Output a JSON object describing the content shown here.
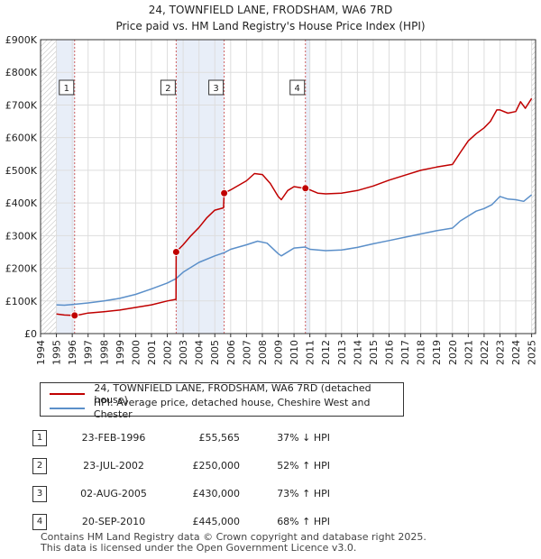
{
  "chart_data": {
    "type": "line",
    "title": "24, TOWNFIELD LANE, FRODSHAM, WA6 7RD",
    "subtitle": "Price paid vs. HM Land Registry's House Price Index (HPI)",
    "xlim": [
      1994,
      2025.25
    ],
    "ylim": [
      0,
      900000
    ],
    "y_ticks": [
      0,
      100000,
      200000,
      300000,
      400000,
      500000,
      600000,
      700000,
      800000,
      900000
    ],
    "y_tick_labels": [
      "£0",
      "£100K",
      "£200K",
      "£300K",
      "£400K",
      "£500K",
      "£600K",
      "£700K",
      "£800K",
      "£900K"
    ],
    "x_ticks": [
      1994,
      1995,
      1996,
      1997,
      1998,
      1999,
      2000,
      2001,
      2002,
      2003,
      2004,
      2005,
      2006,
      2007,
      2008,
      2009,
      2010,
      2011,
      2012,
      2013,
      2014,
      2015,
      2016,
      2017,
      2018,
      2019,
      2020,
      2021,
      2022,
      2023,
      2024,
      2025
    ],
    "x_tick_labels": [
      "1994",
      "1995",
      "1996",
      "1997",
      "1998",
      "1999",
      "2000",
      "2001",
      "2002",
      "2003",
      "2004",
      "2005",
      "2006",
      "2007",
      "2008",
      "2009",
      "2010",
      "2011",
      "2012",
      "2013",
      "2014",
      "2015",
      "2016",
      "2017",
      "2018",
      "2019",
      "2020",
      "2021",
      "2022",
      "2023",
      "2024",
      "2025"
    ],
    "grid": true,
    "series": [
      {
        "name": "24, TOWNFIELD LANE, FRODSHAM, WA6 7RD (detached house)",
        "color": "#c00000",
        "x": [
          1995.0,
          1995.5,
          1996.15,
          1996.5,
          1997.0,
          1998.0,
          1999.0,
          2000.0,
          2001.0,
          2002.0,
          2002.55,
          2002.56,
          2003.0,
          2003.5,
          2004.0,
          2004.5,
          2005.0,
          2005.55,
          2005.59,
          2006.0,
          2007.0,
          2007.5,
          2008.0,
          2008.5,
          2009.0,
          2009.2,
          2009.6,
          2010.0,
          2010.4,
          2010.72,
          2011.0,
          2011.5,
          2012.0,
          2013.0,
          2014.0,
          2015.0,
          2016.0,
          2017.0,
          2018.0,
          2019.0,
          2020.0,
          2020.5,
          2021.0,
          2021.5,
          2022.0,
          2022.4,
          2022.8,
          2023.0,
          2023.5,
          2024.0,
          2024.3,
          2024.6,
          2025.0
        ],
        "values": [
          60000,
          57000,
          55565,
          58000,
          63000,
          67000,
          72000,
          80000,
          88000,
          100000,
          105000,
          250000,
          272000,
          300000,
          325000,
          355000,
          378000,
          385000,
          430000,
          440000,
          468000,
          490000,
          487000,
          460000,
          420000,
          410000,
          438000,
          450000,
          447000,
          445000,
          440000,
          430000,
          428000,
          430000,
          438000,
          452000,
          470000,
          485000,
          500000,
          510000,
          518000,
          555000,
          590000,
          612000,
          630000,
          650000,
          685000,
          685000,
          675000,
          680000,
          710000,
          690000,
          720000
        ]
      },
      {
        "name": "HPI: Average price, detached house, Cheshire West and Chester",
        "color": "#5b8fc9",
        "x": [
          1995.0,
          1995.5,
          1996.0,
          1997.0,
          1998.0,
          1999.0,
          2000.0,
          2001.0,
          2002.0,
          2002.55,
          2003.0,
          2004.0,
          2005.0,
          2005.6,
          2006.0,
          2007.0,
          2007.7,
          2008.3,
          2009.0,
          2009.2,
          2010.0,
          2010.7,
          2011.0,
          2012.0,
          2013.0,
          2014.0,
          2015.0,
          2016.0,
          2017.0,
          2018.0,
          2019.0,
          2020.0,
          2020.5,
          2021.0,
          2021.5,
          2022.0,
          2022.5,
          2023.0,
          2023.5,
          2024.0,
          2024.5,
          2025.0
        ],
        "values": [
          88000,
          87000,
          89000,
          94000,
          100000,
          108000,
          120000,
          137000,
          155000,
          168000,
          188000,
          218000,
          238000,
          248000,
          258000,
          272000,
          283000,
          277000,
          245000,
          238000,
          262000,
          265000,
          258000,
          254000,
          256000,
          264000,
          275000,
          285000,
          295000,
          305000,
          315000,
          323000,
          345000,
          360000,
          375000,
          383000,
          395000,
          420000,
          412000,
          410000,
          405000,
          425000
        ]
      }
    ],
    "sales": [
      {
        "label": "1",
        "date": "23-FEB-1996",
        "price": "£55,565",
        "hpi": "37% ↓ HPI",
        "x": 1996.15,
        "value": 55565
      },
      {
        "label": "2",
        "date": "23-JUL-2002",
        "price": "£250,000",
        "hpi": "52% ↑ HPI",
        "x": 2002.56,
        "value": 250000
      },
      {
        "label": "3",
        "date": "02-AUG-2005",
        "price": "£430,000",
        "hpi": "73% ↑ HPI",
        "x": 2005.59,
        "value": 430000
      },
      {
        "label": "4",
        "date": "20-SEP-2010",
        "price": "£445,000",
        "hpi": "68% ↑ HPI",
        "x": 2010.72,
        "value": 445000
      }
    ],
    "shaded_ranges": [
      [
        1995.0,
        1996.15
      ],
      [
        2002.56,
        2005.59
      ],
      [
        2010.72,
        2011.0
      ]
    ],
    "hatched_ranges": [
      [
        1994.0,
        1995.0
      ],
      [
        2025.0,
        2025.25
      ]
    ]
  },
  "footer": {
    "line1": "Contains HM Land Registry data © Crown copyright and database right 2025.",
    "line2": "This data is licensed under the Open Government Licence v3.0."
  }
}
